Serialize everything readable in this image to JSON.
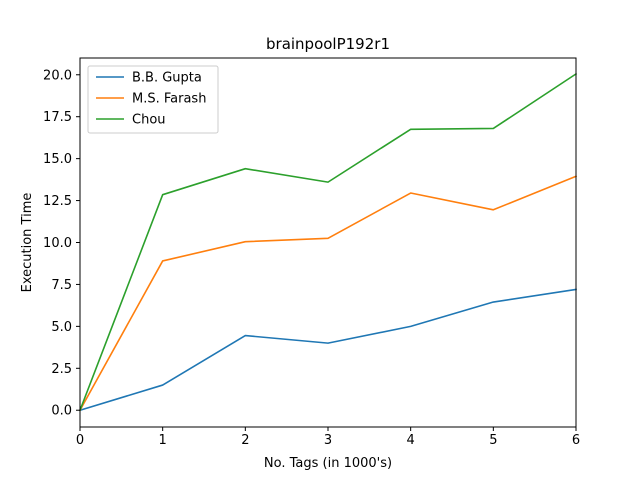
{
  "chart_data": {
    "type": "line",
    "title": "brainpoolP192r1",
    "xlabel": "No. Tags (in 1000's)",
    "ylabel": "Execution Time",
    "x": [
      0,
      1,
      2,
      3,
      4,
      5,
      6
    ],
    "xlim": [
      0,
      6
    ],
    "ylim": [
      -1.0,
      21.0
    ],
    "xticks": [
      0,
      1,
      2,
      3,
      4,
      5,
      6
    ],
    "yticks": [
      0.0,
      2.5,
      5.0,
      7.5,
      10.0,
      12.5,
      15.0,
      17.5,
      20.0
    ],
    "xtick_labels": [
      "0",
      "1",
      "2",
      "3",
      "4",
      "5",
      "6"
    ],
    "ytick_labels": [
      "0.0",
      "2.5",
      "5.0",
      "7.5",
      "10.0",
      "12.5",
      "15.0",
      "17.5",
      "20.0"
    ],
    "grid": false,
    "legend_position": "top-left",
    "series": [
      {
        "name": "B.B. Gupta",
        "color": "#1f77b4",
        "values": [
          0.0,
          1.5,
          4.45,
          4.0,
          5.0,
          6.45,
          7.2
        ]
      },
      {
        "name": "M.S. Farash",
        "color": "#ff7f0e",
        "values": [
          0.0,
          8.9,
          10.05,
          10.25,
          12.95,
          11.95,
          13.95
        ]
      },
      {
        "name": "Chou",
        "color": "#2ca02c",
        "values": [
          0.0,
          12.85,
          14.4,
          13.6,
          16.75,
          16.8,
          20.05
        ]
      }
    ]
  }
}
